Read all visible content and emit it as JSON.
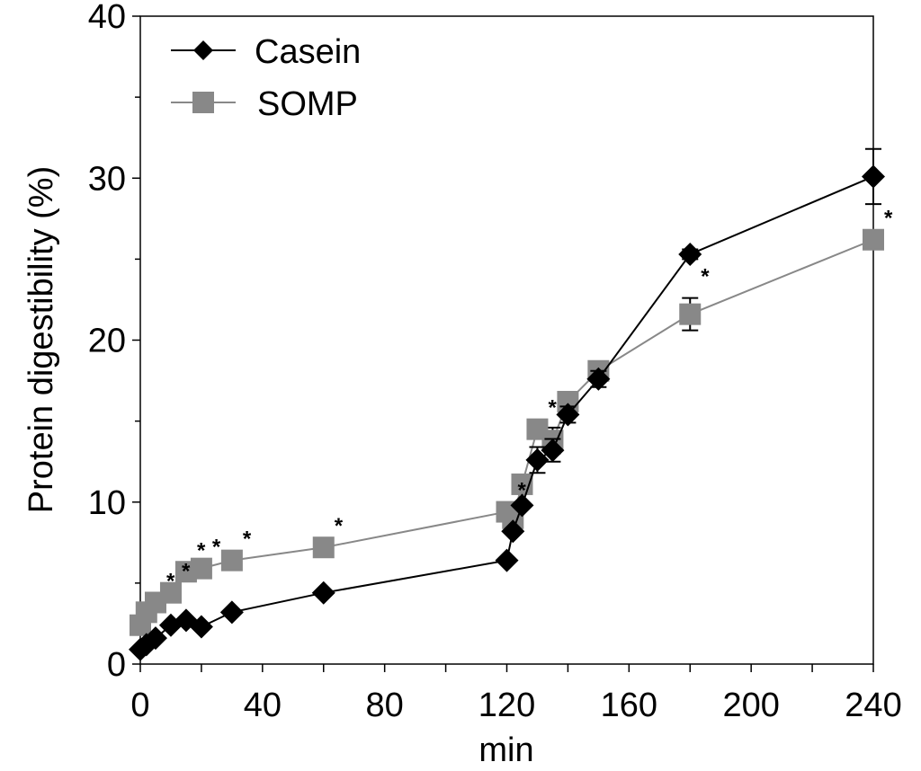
{
  "chart_data": {
    "type": "line",
    "title": "",
    "xlabel": "min",
    "ylabel": "Protein digestibility (%)",
    "xlim": [
      0,
      240
    ],
    "ylim": [
      0,
      40
    ],
    "x_ticks": [
      "0",
      "40",
      "80",
      "120",
      "160",
      "200",
      "240"
    ],
    "x_tick_values": [
      0,
      40,
      80,
      120,
      160,
      200,
      240
    ],
    "y_ticks": [
      "0",
      "10",
      "20",
      "30",
      "40"
    ],
    "y_tick_values": [
      0,
      10,
      20,
      30,
      40
    ],
    "grid": false,
    "legend_position": "top-left",
    "series": [
      {
        "name": "Casein",
        "color": "#000000",
        "marker": "diamond",
        "x": [
          0,
          2,
          5,
          10,
          15,
          20,
          30,
          60,
          120,
          122,
          125,
          130,
          135,
          140,
          150,
          180,
          240
        ],
        "y": [
          0.9,
          1.2,
          1.6,
          2.4,
          2.7,
          2.3,
          3.2,
          4.4,
          6.4,
          8.2,
          9.8,
          12.6,
          13.2,
          15.4,
          17.6,
          25.3,
          30.1
        ],
        "error": [
          0,
          0,
          0,
          0,
          0,
          0,
          0,
          0,
          0,
          0,
          0,
          0.8,
          0.7,
          0.5,
          0.5,
          0.3,
          1.7
        ]
      },
      {
        "name": "SOMP",
        "color": "#888888",
        "marker": "square",
        "x": [
          0,
          2,
          5,
          10,
          15,
          20,
          30,
          60,
          120,
          122,
          125,
          130,
          135,
          140,
          150,
          180,
          240
        ],
        "y": [
          2.4,
          3.2,
          3.8,
          4.4,
          5.7,
          5.9,
          6.4,
          7.2,
          9.4,
          9.0,
          11.1,
          14.5,
          13.8,
          16.2,
          18.1,
          21.6,
          26.2
        ],
        "error": [
          0,
          0,
          0,
          0,
          0,
          0,
          0,
          0,
          0,
          0,
          0,
          0,
          0.8,
          0,
          0,
          1.0,
          0
        ]
      }
    ],
    "annotations": [
      {
        "text": "*",
        "x": 5,
        "y": 3.8
      },
      {
        "text": "*",
        "x": 10,
        "y": 4.4
      },
      {
        "text": "*",
        "x": 15,
        "y": 5.7
      },
      {
        "text": "*",
        "x": 20,
        "y": 5.9
      },
      {
        "text": "*",
        "x": 30,
        "y": 6.4
      },
      {
        "text": "*",
        "x": 60,
        "y": 7.2
      },
      {
        "text": "*",
        "x": 120,
        "y": 9.4
      },
      {
        "text": "*",
        "x": 125,
        "y": 11.1
      },
      {
        "text": "*",
        "x": 130,
        "y": 14.5
      },
      {
        "text": "*",
        "x": 180,
        "y": 22.6
      },
      {
        "text": "*",
        "x": 240,
        "y": 26.2
      }
    ]
  }
}
